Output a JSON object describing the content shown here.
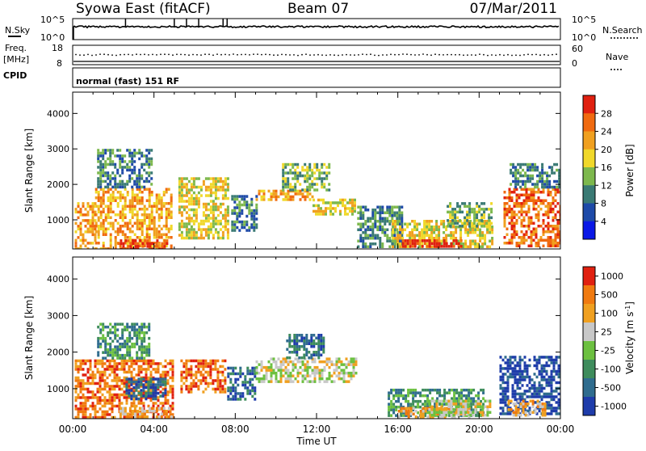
{
  "header": {
    "title": "Syowa East (fitACF)",
    "beam": "Beam 07",
    "date": "07/Mar/2011"
  },
  "top_panels": {
    "nsky_label": "N.Sky",
    "nsky_ticks": [
      "10^5",
      "10^0"
    ],
    "nsearch_label": "N.Search",
    "nsearch_ticks": [
      "10^5",
      "10^0"
    ],
    "freq_label_1": "Freq.",
    "freq_label_2": "[MHz]",
    "freq_ticks": [
      "18",
      "8"
    ],
    "nave_label": "Nave",
    "nave_ticks": [
      "60",
      "0"
    ],
    "cpid_label": "CPID",
    "cpid_text": "normal (fast) 151 RF"
  },
  "chart_data": [
    {
      "type": "heatmap",
      "name": "power",
      "ylabel": "Slant Range [km]",
      "yticks": [
        "4000",
        "3000",
        "2000",
        "1000"
      ],
      "ytick_values": [
        4000,
        3000,
        2000,
        1000
      ],
      "ylim": [
        180,
        4600
      ],
      "xlim_hours": [
        0,
        24
      ],
      "colorbar_label": "Power [dB]",
      "colorbar_ticks": [
        "28",
        "24",
        "20",
        "16",
        "12",
        "8",
        "4"
      ],
      "colors": [
        "#0a18e6",
        "#1e4aa8",
        "#3a7a74",
        "#7db84d",
        "#f0d82a",
        "#f0a020",
        "#f06a10",
        "#e02010"
      ],
      "echo_regions": [
        {
          "t0": 1.1,
          "t1": 4.9,
          "r0": 200,
          "r1": 1900,
          "level": 5
        },
        {
          "t0": 1.2,
          "t1": 3.9,
          "r0": 1900,
          "r1": 3000,
          "level": 2
        },
        {
          "t0": 0.1,
          "t1": 1.1,
          "r0": 200,
          "r1": 1500,
          "level": 5
        },
        {
          "t0": 2.2,
          "t1": 4.6,
          "r0": 200,
          "r1": 450,
          "level": 7
        },
        {
          "t0": 5.2,
          "t1": 7.6,
          "r0": 500,
          "r1": 2200,
          "level": 4
        },
        {
          "t0": 7.8,
          "t1": 9.0,
          "r0": 700,
          "r1": 1700,
          "level": 2
        },
        {
          "t0": 9.0,
          "t1": 11.8,
          "r0": 1550,
          "r1": 1850,
          "level": 5
        },
        {
          "t0": 10.3,
          "t1": 12.6,
          "r0": 1850,
          "r1": 2600,
          "level": 3
        },
        {
          "t0": 11.8,
          "t1": 13.9,
          "r0": 1150,
          "r1": 1600,
          "level": 4
        },
        {
          "t0": 14.0,
          "t1": 16.2,
          "r0": 250,
          "r1": 1400,
          "level": 2
        },
        {
          "t0": 15.7,
          "t1": 20.7,
          "r0": 250,
          "r1": 1000,
          "level": 4
        },
        {
          "t0": 16.2,
          "t1": 19.2,
          "r0": 250,
          "r1": 450,
          "level": 7
        },
        {
          "t0": 18.4,
          "t1": 20.6,
          "r0": 850,
          "r1": 1500,
          "level": 3
        },
        {
          "t0": 21.2,
          "t1": 24.0,
          "r0": 250,
          "r1": 1900,
          "level": 6
        },
        {
          "t0": 21.5,
          "t1": 24.0,
          "r0": 1900,
          "r1": 2600,
          "level": 2
        }
      ]
    },
    {
      "type": "heatmap",
      "name": "velocity",
      "ylabel": "Slant Range [km]",
      "yticks": [
        "4000",
        "3000",
        "2000",
        "1000"
      ],
      "ytick_values": [
        4000,
        3000,
        2000,
        1000
      ],
      "ylim": [
        180,
        4600
      ],
      "xlim_hours": [
        0,
        24
      ],
      "xticks": [
        "00:00",
        "04:00",
        "08:00",
        "12:00",
        "16:00",
        "20:00",
        "00:00"
      ],
      "xlabel": "Time UT",
      "colorbar_label": "Velocity [m s",
      "colorbar_label_sup": "-1",
      "colorbar_label_end": "]",
      "colorbar_ticks": [
        "1000",
        "500",
        "100",
        "25",
        "-25",
        "-100",
        "-500",
        "-1000"
      ],
      "colors": [
        "#1e3caa",
        "#2f6c8e",
        "#3e8c5c",
        "#6cc040",
        "#c8c8c8",
        "#f0a020",
        "#f07a10",
        "#e02010"
      ],
      "echo_regions": [
        {
          "t0": 0.1,
          "t1": 4.9,
          "r0": 200,
          "r1": 1800,
          "level": 6
        },
        {
          "t0": 2.3,
          "t1": 4.9,
          "r0": 200,
          "r1": 500,
          "level": 5
        },
        {
          "t0": 2.6,
          "t1": 4.6,
          "r0": 700,
          "r1": 1300,
          "level": 1
        },
        {
          "t0": 1.2,
          "t1": 3.8,
          "r0": 1800,
          "r1": 2800,
          "level": 2
        },
        {
          "t0": 5.3,
          "t1": 7.5,
          "r0": 900,
          "r1": 1800,
          "level": 6
        },
        {
          "t0": 7.6,
          "t1": 9.0,
          "r0": 700,
          "r1": 1600,
          "level": 1
        },
        {
          "t0": 9.0,
          "t1": 14.0,
          "r0": 1200,
          "r1": 1850,
          "level": 4
        },
        {
          "t0": 10.5,
          "t1": 12.4,
          "r0": 1850,
          "r1": 2500,
          "level": 1
        },
        {
          "t0": 15.5,
          "t1": 20.2,
          "r0": 250,
          "r1": 1000,
          "level": 2
        },
        {
          "t0": 16.0,
          "t1": 19.5,
          "r0": 250,
          "r1": 500,
          "level": 5
        },
        {
          "t0": 17.5,
          "t1": 20.5,
          "r0": 300,
          "r1": 700,
          "level": 4
        },
        {
          "t0": 21.0,
          "t1": 24.0,
          "r0": 300,
          "r1": 1900,
          "level": 0
        },
        {
          "t0": 21.4,
          "t1": 23.2,
          "r0": 250,
          "r1": 700,
          "level": 5
        }
      ]
    }
  ]
}
